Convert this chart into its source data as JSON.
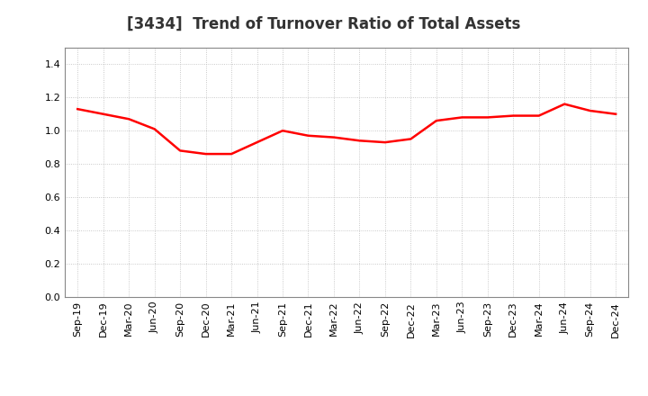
{
  "title": "[3434]  Trend of Turnover Ratio of Total Assets",
  "x_labels": [
    "Sep-19",
    "Dec-19",
    "Mar-20",
    "Jun-20",
    "Sep-20",
    "Dec-20",
    "Mar-21",
    "Jun-21",
    "Sep-21",
    "Dec-21",
    "Mar-22",
    "Jun-22",
    "Sep-22",
    "Dec-22",
    "Mar-23",
    "Jun-23",
    "Sep-23",
    "Dec-23",
    "Mar-24",
    "Jun-24",
    "Sep-24",
    "Dec-24"
  ],
  "y_values": [
    1.13,
    1.1,
    1.07,
    1.01,
    0.88,
    0.86,
    0.86,
    0.93,
    1.0,
    0.97,
    0.96,
    0.94,
    0.93,
    0.95,
    1.06,
    1.08,
    1.08,
    1.09,
    1.09,
    1.16,
    1.12,
    1.1
  ],
  "ylim": [
    0.0,
    1.5
  ],
  "yticks": [
    0.0,
    0.2,
    0.4,
    0.6,
    0.8,
    1.0,
    1.2,
    1.4
  ],
  "line_color": "#ff0000",
  "line_width": 1.8,
  "bg_color": "#ffffff",
  "grid_color": "#bbbbbb",
  "title_fontsize": 12,
  "tick_fontsize": 8,
  "title_color": "#333333"
}
